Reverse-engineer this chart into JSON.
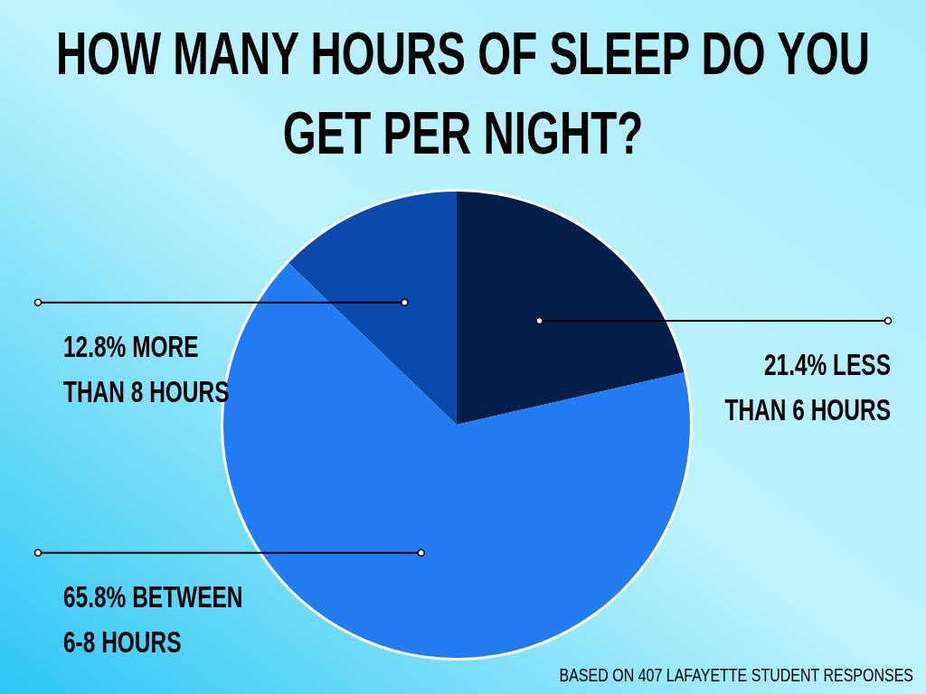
{
  "chart_data": {
    "type": "pie",
    "title": "HOW MANY HOURS OF SLEEP DO YOU GET PER NIGHT?",
    "categories": [
      "LESS THAN 6 HOURS",
      "BETWEEN 6-8 HOURS",
      "MORE THAN 8 HOURS"
    ],
    "values": [
      21.4,
      65.8,
      12.8
    ],
    "value_labels": [
      "21.4%",
      "65.8%",
      "12.8%"
    ],
    "colors": [
      "#031f47",
      "#247cf4",
      "#0a4aad"
    ],
    "annotations": [
      "BASED ON 407 LAFAYETTE STUDENT RESPONSES"
    ]
  }
}
